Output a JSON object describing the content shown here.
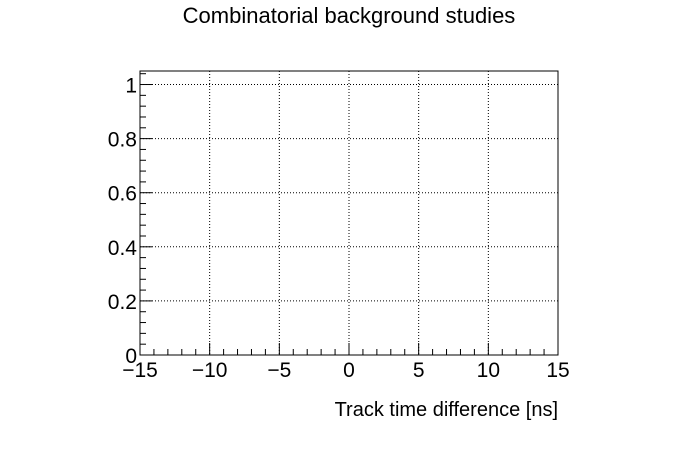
{
  "chart_data": {
    "type": "line",
    "title": "Combinatorial background studies",
    "xlabel": "Track time difference [ns]",
    "ylabel": "",
    "xlim": [
      -15,
      15
    ],
    "ylim": [
      0,
      1.05
    ],
    "x_ticks": [
      -15,
      -10,
      -5,
      0,
      5,
      10,
      15
    ],
    "x_tick_labels": [
      "−15",
      "−10",
      "−5",
      "0",
      "5",
      "10",
      "15"
    ],
    "y_ticks": [
      0,
      0.2,
      0.4,
      0.6,
      0.8,
      1
    ],
    "y_tick_labels": [
      "0",
      "0.2",
      "0.4",
      "0.6",
      "0.8",
      "1"
    ],
    "grid": true,
    "grid_style": "dotted",
    "series": []
  }
}
